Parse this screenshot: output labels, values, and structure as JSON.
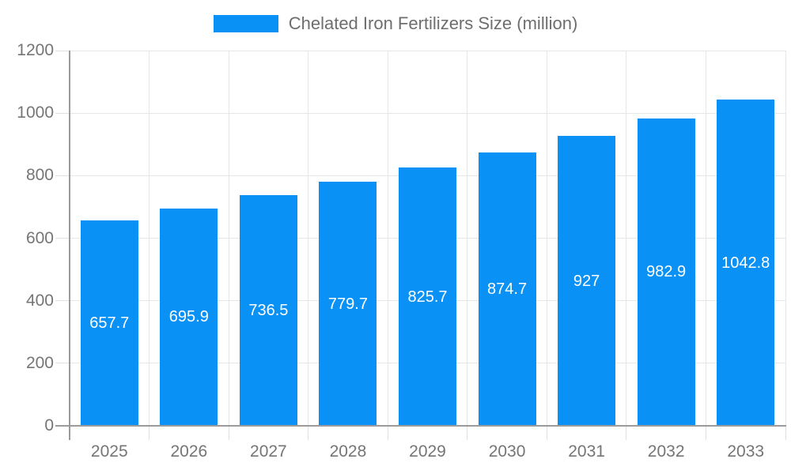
{
  "legend": {
    "label": "Chelated Iron Fertilizers Size (million)"
  },
  "chart_data": {
    "type": "bar",
    "title": "Chelated Iron Fertilizers Size (million)",
    "legend_entries": [
      "Chelated Iron Fertilizers Size (million)"
    ],
    "legend_position": "top-center",
    "categories": [
      "2025",
      "2026",
      "2027",
      "2028",
      "2029",
      "2030",
      "2031",
      "2032",
      "2033"
    ],
    "values": [
      657.7,
      695.9,
      736.5,
      779.7,
      825.7,
      874.7,
      927,
      982.9,
      1042.8
    ],
    "value_labels": [
      "657.7",
      "695.9",
      "736.5",
      "779.7",
      "825.7",
      "874.7",
      "927",
      "982.9",
      "1042.8"
    ],
    "xlabel": "",
    "ylabel": "",
    "ylim": [
      0,
      1200
    ],
    "ytick_step": 200,
    "ytick_labels": [
      "0",
      "200",
      "400",
      "600",
      "800",
      "1000",
      "1200"
    ],
    "grid": true,
    "value_label_position": "inside-middle",
    "colors": {
      "bar": "#0a91f5",
      "grid": "#e6e6e6",
      "tick": "#e0e0e0",
      "axis": "#9b9b9b",
      "axis_text": "#757575",
      "title_text": "#6e6e6e",
      "bar_label_text": "#ffffff",
      "background": "#ffffff"
    }
  }
}
